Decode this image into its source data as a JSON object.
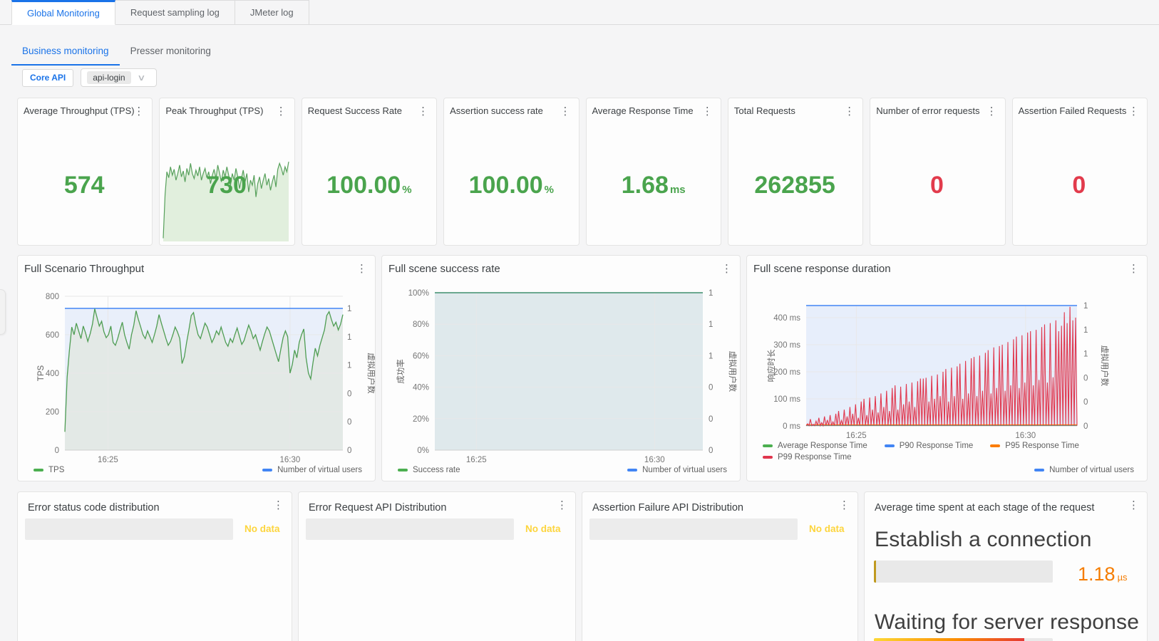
{
  "colors": {
    "green": "#4aa44d",
    "red": "#e23b4c",
    "blue": "#4285f4",
    "link_blue": "#1a73e8",
    "orange": "#f57c00",
    "yellow": "#fdd53d",
    "p95_orange": "#fb7c00",
    "p99_red": "#e0364d"
  },
  "tabs": {
    "main": [
      {
        "label": "Global Monitoring"
      },
      {
        "label": "Request sampling log"
      },
      {
        "label": "JMeter log"
      }
    ],
    "sub": [
      {
        "label": "Business monitoring"
      },
      {
        "label": "Presser monitoring"
      }
    ]
  },
  "filters": {
    "button": "Core API",
    "selected": "api-login",
    "chevron": "∨"
  },
  "kebab_glyph": "⋮",
  "stat_cards": [
    {
      "title": "Average Throughput (TPS)",
      "value": "574",
      "unit": "",
      "color": "green"
    },
    {
      "title": "Peak Throughput (TPS)",
      "value": "730",
      "unit": "",
      "color": "green"
    },
    {
      "title": "Request Success Rate",
      "value": "100.00",
      "unit": "%",
      "color": "green"
    },
    {
      "title": "Assertion success rate",
      "value": "100.00",
      "unit": "%",
      "color": "green"
    },
    {
      "title": "Average Response Time",
      "value": "1.68",
      "unit": "ms",
      "color": "green"
    },
    {
      "title": "Total Requests",
      "value": "262855",
      "unit": "",
      "color": "green"
    },
    {
      "title": "Number of error requests",
      "value": "0",
      "unit": "",
      "color": "red"
    },
    {
      "title": "Assertion Failed Requests",
      "value": "0",
      "unit": "",
      "color": "red"
    }
  ],
  "chart_data": [
    {
      "id": "tps",
      "type": "line",
      "title": "Full Scenario Throughput",
      "ylabel": "TPS",
      "ylabel_right": "虚拟用户数",
      "yticks": [
        "800",
        "600",
        "400",
        "200",
        "0"
      ],
      "right_ticks": [
        "1",
        "1",
        "1",
        "0",
        "0",
        "0"
      ],
      "xticks": [
        "16:25",
        "16:30"
      ],
      "ylim": [
        0,
        800
      ],
      "grid": true,
      "legend_position": "bottom",
      "legend": [
        {
          "label": "TPS",
          "color": "#4caf50"
        },
        {
          "label": "Number of virtual users",
          "color": "#4285f4"
        }
      ],
      "series": [
        {
          "name": "Number of virtual users",
          "color": "#4285f4",
          "width": 1.6,
          "fill": "#e9effa",
          "ylim": [
            0,
            1
          ],
          "values": [
            1,
            1
          ]
        },
        {
          "name": "TPS",
          "color": "#4f9d53",
          "width": 1.3,
          "fill": "#e3e9e6",
          "ylim": [
            0,
            800
          ],
          "values": [
            95,
            380,
            520,
            640,
            600,
            660,
            620,
            580,
            645,
            610,
            565,
            605,
            655,
            735,
            690,
            645,
            670,
            615,
            585,
            600,
            645,
            560,
            545,
            580,
            625,
            665,
            600,
            560,
            525,
            600,
            650,
            725,
            680,
            640,
            600,
            580,
            620,
            590,
            560,
            600,
            645,
            705,
            660,
            620,
            580,
            545,
            565,
            600,
            640,
            615,
            580,
            450,
            485,
            560,
            625,
            700,
            715,
            650,
            600,
            580,
            620,
            660,
            640,
            600,
            560,
            585,
            620,
            600,
            640,
            600,
            560,
            540,
            580,
            560,
            600,
            635,
            590,
            550,
            570,
            610,
            650,
            620,
            580,
            600,
            560,
            520,
            565,
            605,
            640,
            620,
            580,
            540,
            500,
            460,
            525,
            585,
            620,
            590,
            400,
            445,
            520,
            480,
            560,
            600,
            630,
            480,
            400,
            370,
            455,
            530,
            490,
            545,
            585,
            625,
            700,
            720,
            680,
            645,
            665,
            625,
            655,
            705
          ]
        }
      ]
    },
    {
      "id": "success",
      "type": "area",
      "title": "Full scene success rate",
      "ylabel": "成功率",
      "ylabel_right": "虚拟用户数",
      "yticks": [
        "100%",
        "80%",
        "60%",
        "40%",
        "20%",
        "0%"
      ],
      "right_ticks": [
        "1",
        "1",
        "1",
        "0",
        "0",
        "0"
      ],
      "xticks": [
        "16:25",
        "16:30"
      ],
      "ylim": [
        0,
        100
      ],
      "grid": true,
      "legend_position": "bottom",
      "legend": [
        {
          "label": "Success rate",
          "color": "#4caf50"
        },
        {
          "label": "Number of virtual users",
          "color": "#4285f4"
        }
      ],
      "series": [
        {
          "name": "Number of virtual users",
          "color": "#4285f4",
          "width": 1.6,
          "fill": "#dfe9ec",
          "ylim": [
            0,
            1
          ],
          "values": [
            1,
            1
          ]
        },
        {
          "name": "Success rate",
          "color": "#4f9d53",
          "width": 1.2,
          "ylim": [
            0,
            100
          ],
          "values": [
            100,
            100
          ]
        }
      ]
    },
    {
      "id": "response",
      "type": "line",
      "title": "Full scene response duration",
      "ylabel": "响应时长",
      "ylabel_right": "虚拟用户数",
      "yticks": [
        "400 ms",
        "300 ms",
        "200 ms",
        "100 ms",
        "0 ms"
      ],
      "right_ticks": [
        "1",
        "1",
        "1",
        "0",
        "0",
        "0"
      ],
      "xticks": [
        "16:25",
        "16:30"
      ],
      "ylim": [
        0,
        400
      ],
      "grid": true,
      "legend_position": "bottom",
      "legend": [
        {
          "label": "Average Response Time",
          "color": "#4caf50"
        },
        {
          "label": "P90 Response Time",
          "color": "#4285f4"
        },
        {
          "label": "P95 Response Time",
          "color": "#fb7c00"
        },
        {
          "label": "P99 Response Time",
          "color": "#e0364d"
        },
        {
          "label": "Number of virtual users",
          "color": "#4285f4"
        }
      ],
      "series": [
        {
          "name": "Number of virtual users",
          "color": "#4285f4",
          "width": 1.6,
          "fill": "#e7eefb",
          "ylim": [
            0,
            1
          ],
          "values": [
            1,
            1
          ]
        },
        {
          "name": "Average Response Time",
          "color": "#4caf50",
          "width": 1.1,
          "ylim": [
            0,
            400
          ],
          "values": [
            1.7,
            1.7
          ]
        },
        {
          "name": "P90 Response Time",
          "color": "#4285f4",
          "width": 1.0,
          "ylim": [
            0,
            400
          ],
          "values": [
            2.5,
            2.5
          ]
        },
        {
          "name": "P95 Response Time",
          "color": "#fb7c00",
          "width": 1.3,
          "ylim": [
            0,
            400
          ],
          "values": [
            4,
            4
          ]
        },
        {
          "name": "P99 Response Time",
          "color": "#e0364d",
          "width": 1.1,
          "zigzag": true,
          "fill": "rgba(224,54,77,0.06)",
          "ylim": [
            0,
            400
          ],
          "values": [
            8,
            25,
            6,
            18,
            30,
            12,
            35,
            22,
            40,
            15,
            45,
            55,
            20,
            60,
            35,
            70,
            45,
            80,
            30,
            90,
            100,
            40,
            105,
            60,
            110,
            50,
            120,
            70,
            130,
            55,
            140,
            150,
            60,
            145,
            80,
            155,
            90,
            160,
            70,
            165,
            175,
            175,
            178,
            90,
            185,
            100,
            190,
            110,
            200,
            210,
            90,
            215,
            110,
            220,
            230,
            100,
            240,
            120,
            250,
            255,
            110,
            260,
            130,
            270,
            280,
            120,
            290,
            140,
            295,
            300,
            130,
            310,
            150,
            320,
            330,
            140,
            335,
            160,
            345,
            350,
            150,
            355,
            170,
            365,
            375,
            160,
            380,
            180,
            390,
            350,
            370,
            420,
            380,
            440,
            390,
            400
          ]
        }
      ]
    },
    {
      "id": "peak_spark",
      "type": "area",
      "title": "Peak Throughput (TPS) sparkline",
      "ylim": [
        0,
        1
      ],
      "grid": false,
      "series": [
        {
          "name": "TPS",
          "color": "#57a05b",
          "width": 1.2,
          "fill": "#e1efdd",
          "values": [
            0.03,
            0.55,
            0.82,
            0.75,
            0.88,
            0.78,
            0.85,
            0.72,
            0.8,
            0.9,
            0.76,
            0.83,
            0.7,
            0.86,
            0.78,
            0.92,
            0.8,
            0.74,
            0.84,
            0.77,
            0.88,
            0.72,
            0.8,
            0.86,
            0.75,
            0.82,
            0.68,
            0.78,
            0.85,
            0.74,
            0.9,
            0.8,
            0.7,
            0.84,
            0.76,
            0.88,
            0.78,
            0.66,
            0.8,
            0.72,
            0.86,
            0.76,
            0.62,
            0.74,
            0.84,
            0.7,
            0.8,
            0.58,
            0.72,
            0.66,
            0.78,
            0.52,
            0.68,
            0.76,
            0.62,
            0.72,
            0.8,
            0.66,
            0.74,
            0.6,
            0.7,
            0.78,
            0.64,
            0.85,
            0.92,
            0.86,
            0.78,
            0.88,
            0.82,
            0.94
          ]
        }
      ]
    }
  ],
  "no_data_panels": {
    "label": "No data",
    "titles": [
      "Error status code distribution",
      "Error Request API Distribution",
      "Assertion Failure API Distribution"
    ]
  },
  "stage_panel": {
    "title": "Average time spent at each stage of the request",
    "stages": [
      {
        "heading": "Establish a connection",
        "value": "1.18",
        "unit": "µs"
      },
      {
        "heading": "Waiting for server response"
      }
    ]
  }
}
